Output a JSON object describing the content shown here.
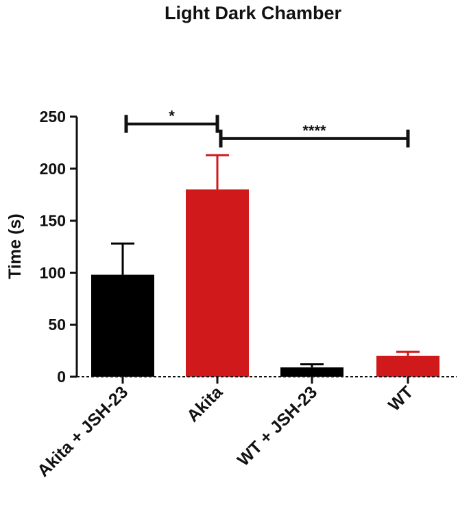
{
  "chart_data": {
    "type": "bar",
    "title": "Light Dark Chamber",
    "xlabel": "",
    "ylabel": "Time  (s)",
    "ylim": [
      0,
      250
    ],
    "yticks": [
      "0",
      "50",
      "100",
      "150",
      "200",
      "250"
    ],
    "categories": [
      "Akita + JSH-23",
      "Akita",
      "WT + JSH-23",
      "WT"
    ],
    "values": [
      98,
      180,
      9,
      20
    ],
    "errors": [
      30,
      33,
      3,
      4
    ],
    "bar_colors": [
      "#000000",
      "#d0191b",
      "#000000",
      "#d0191b"
    ],
    "error_colors": [
      "#000000",
      "#d0191b",
      "#000000",
      "#d0191b"
    ],
    "grid": false,
    "legend": "none",
    "significance": [
      {
        "from": 0,
        "to": 1,
        "label": "*",
        "y": 243
      },
      {
        "from": 1,
        "to": 3,
        "label": "****",
        "y": 229
      }
    ]
  }
}
